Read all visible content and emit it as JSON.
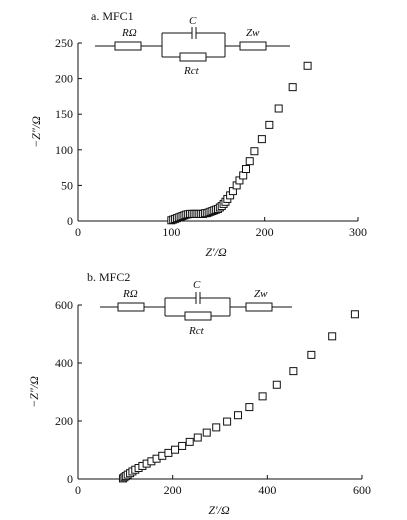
{
  "chart_data": [
    {
      "type": "scatter",
      "panel_label": "a. MFC1",
      "xlabel": "Z′/Ω",
      "ylabel": "−Z″/Ω",
      "xlim": [
        0,
        300
      ],
      "ylim": [
        0,
        250
      ],
      "x_ticks": [
        0,
        100,
        200,
        300
      ],
      "y_ticks": [
        0,
        50,
        100,
        150,
        200,
        250
      ],
      "circuit": {
        "R_omega": "RΩ",
        "C": "C",
        "R_ct": "Rct",
        "Z_w": "Zw"
      },
      "series": [
        {
          "points": [
            [
              100,
              1
            ],
            [
              102,
              2
            ],
            [
              104,
              3
            ],
            [
              106,
              4
            ],
            [
              108,
              5
            ],
            [
              110,
              6
            ],
            [
              112,
              7
            ],
            [
              114,
              8
            ],
            [
              116,
              9
            ],
            [
              118,
              9.5
            ],
            [
              120,
              10
            ],
            [
              122,
              10
            ],
            [
              124,
              10
            ],
            [
              126,
              10
            ],
            [
              128,
              10
            ],
            [
              130,
              10
            ],
            [
              132,
              10
            ],
            [
              134,
              10
            ],
            [
              136,
              11
            ],
            [
              138,
              11
            ],
            [
              140,
              12
            ],
            [
              142,
              13
            ],
            [
              144,
              14
            ],
            [
              146,
              15
            ],
            [
              148,
              16
            ],
            [
              150,
              17
            ],
            [
              152,
              19
            ],
            [
              154,
              21
            ],
            [
              156,
              24
            ],
            [
              158,
              27
            ],
            [
              160,
              31
            ],
            [
              163,
              36
            ],
            [
              166,
              42
            ],
            [
              170,
              50
            ],
            [
              173,
              57
            ],
            [
              177,
              64
            ],
            [
              180,
              73
            ],
            [
              184,
              84
            ],
            [
              189,
              98
            ],
            [
              197,
              115
            ],
            [
              205,
              135
            ],
            [
              215,
              158
            ],
            [
              230,
              188
            ],
            [
              246,
              218
            ]
          ]
        }
      ]
    },
    {
      "type": "scatter",
      "panel_label": "b. MFC2",
      "xlabel": "Z′/Ω",
      "ylabel": "−Z″/Ω",
      "xlim": [
        0,
        600
      ],
      "ylim": [
        0,
        600
      ],
      "x_ticks": [
        0,
        200,
        400,
        600
      ],
      "y_ticks": [
        0,
        200,
        400,
        600
      ],
      "circuit": {
        "R_omega": "RΩ",
        "C": "C",
        "R_ct": "Rct",
        "Z_w": "Zw"
      },
      "series": [
        {
          "points": [
            [
              95,
              2
            ],
            [
              98,
              6
            ],
            [
              101,
              10
            ],
            [
              105,
              15
            ],
            [
              110,
              20
            ],
            [
              115,
              26
            ],
            [
              121,
              32
            ],
            [
              128,
              38
            ],
            [
              136,
              45
            ],
            [
              145,
              53
            ],
            [
              155,
              61
            ],
            [
              166,
              70
            ],
            [
              178,
              80
            ],
            [
              191,
              90
            ],
            [
              205,
              101
            ],
            [
              220,
              114
            ],
            [
              236,
              128
            ],
            [
              253,
              143
            ],
            [
              272,
              160
            ],
            [
              292,
              178
            ],
            [
              315,
              198
            ],
            [
              338,
              220
            ],
            [
              362,
              248
            ],
            [
              390,
              285
            ],
            [
              420,
              325
            ],
            [
              455,
              372
            ],
            [
              493,
              428
            ],
            [
              537,
              492
            ],
            [
              585,
              568
            ]
          ]
        }
      ]
    }
  ]
}
